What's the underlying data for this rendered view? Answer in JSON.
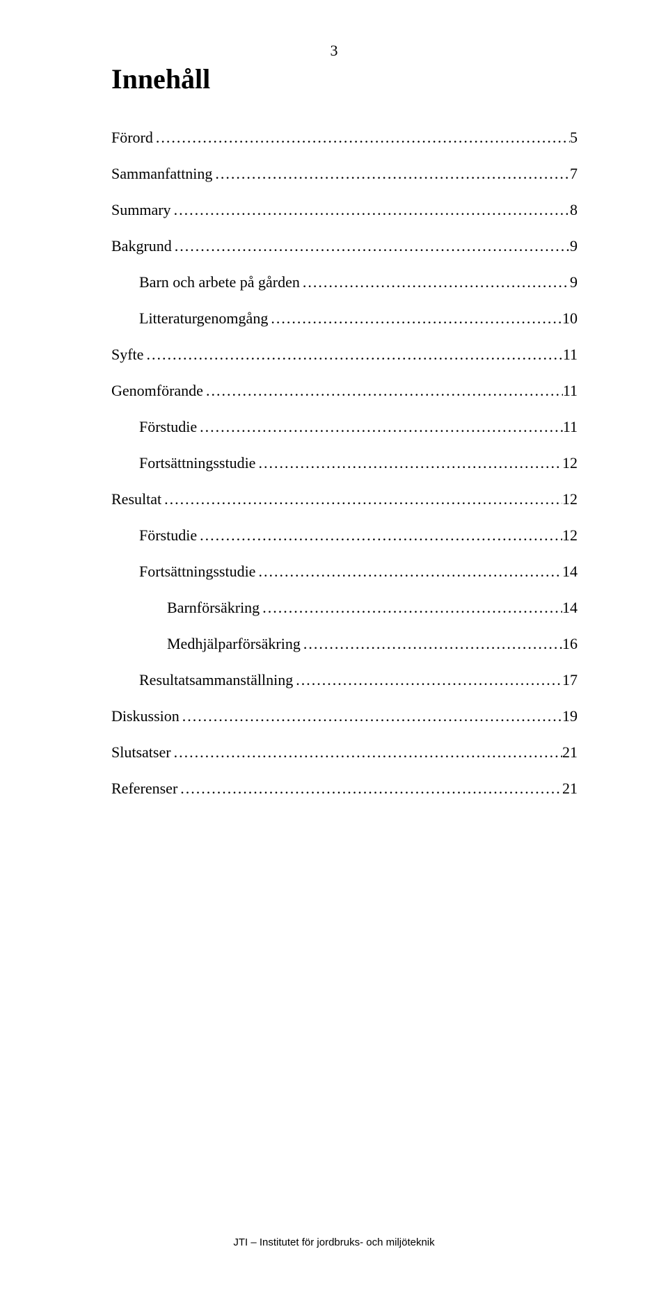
{
  "page_number_top": "3",
  "title": "Innehåll",
  "leader_char": ".",
  "footer": "JTI – Institutet för jordbruks- och miljöteknik",
  "toc": [
    {
      "label": "Förord",
      "page": "5",
      "indent": 0
    },
    {
      "label": "Sammanfattning",
      "page": "7",
      "indent": 0
    },
    {
      "label": "Summary",
      "page": "8",
      "indent": 0
    },
    {
      "label": "Bakgrund",
      "page": "9",
      "indent": 0
    },
    {
      "label": "Barn och arbete på gården",
      "page": "9",
      "indent": 1
    },
    {
      "label": "Litteraturgenomgång",
      "page": "10",
      "indent": 1
    },
    {
      "label": "Syfte",
      "page": "11",
      "indent": 0
    },
    {
      "label": "Genomförande",
      "page": "11",
      "indent": 0
    },
    {
      "label": "Förstudie",
      "page": "11",
      "indent": 1
    },
    {
      "label": "Fortsättningsstudie",
      "page": "12",
      "indent": 1
    },
    {
      "label": "Resultat",
      "page": "12",
      "indent": 0
    },
    {
      "label": "Förstudie",
      "page": "12",
      "indent": 1
    },
    {
      "label": "Fortsättningsstudie",
      "page": "14",
      "indent": 1
    },
    {
      "label": "Barnförsäkring",
      "page": "14",
      "indent": 2
    },
    {
      "label": "Medhjälparförsäkring",
      "page": "16",
      "indent": 2
    },
    {
      "label": "Resultatsammanställning",
      "page": "17",
      "indent": 1
    },
    {
      "label": "Diskussion",
      "page": "19",
      "indent": 0
    },
    {
      "label": "Slutsatser",
      "page": "21",
      "indent": 0
    },
    {
      "label": "Referenser",
      "page": "21",
      "indent": 0
    }
  ]
}
